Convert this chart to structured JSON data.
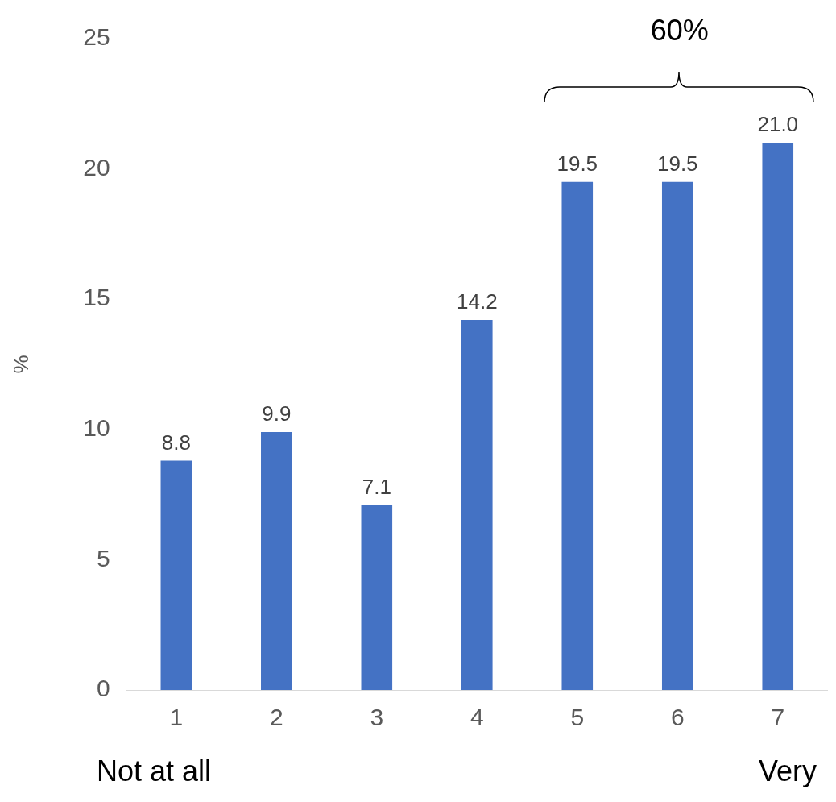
{
  "chart_data": {
    "type": "bar",
    "categories": [
      "1",
      "2",
      "3",
      "4",
      "5",
      "6",
      "7"
    ],
    "values": [
      8.8,
      9.9,
      7.1,
      14.2,
      19.5,
      19.5,
      21.0
    ],
    "value_labels": [
      "8.8",
      "9.9",
      "7.1",
      "14.2",
      "19.5",
      "19.5",
      "21.0"
    ],
    "color": "#4472c4",
    "ylabel": "%",
    "ylim": [
      0,
      25
    ],
    "yticks": [
      0,
      5,
      10,
      15,
      20,
      25
    ],
    "grid": false,
    "legend": false,
    "annotations": [
      "60%",
      "Not at all",
      "Very"
    ]
  }
}
